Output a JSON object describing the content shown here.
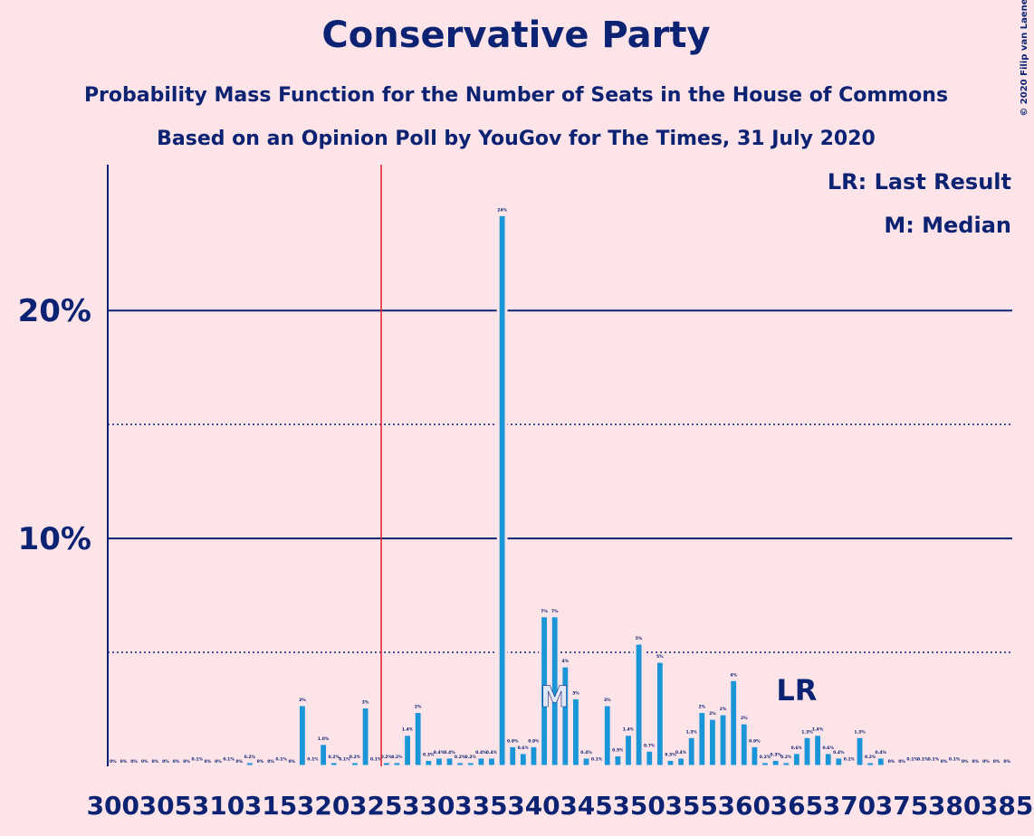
{
  "chart_data": {
    "type": "bar",
    "title": "Conservative Party",
    "subtitle": "Probability Mass Function for the Number of Seats in the House of Commons",
    "subtitle2": "Based on an Opinion Poll by YouGov for The Times, 31 July 2020",
    "copyright": "© 2020 Filip van Laenen",
    "legend": [
      "LR: Last Result",
      "M: Median"
    ],
    "x": [
      300,
      301,
      302,
      303,
      304,
      305,
      306,
      307,
      308,
      309,
      310,
      311,
      312,
      313,
      314,
      315,
      316,
      317,
      318,
      319,
      320,
      321,
      322,
      323,
      324,
      325,
      326,
      327,
      328,
      329,
      330,
      331,
      332,
      333,
      334,
      335,
      336,
      337,
      338,
      339,
      340,
      341,
      342,
      343,
      344,
      345,
      346,
      347,
      348,
      349,
      350,
      351,
      352,
      353,
      354,
      355,
      356,
      357,
      358,
      359,
      360,
      361,
      362,
      363,
      364,
      365,
      366,
      367,
      368,
      369,
      370,
      371,
      372,
      373,
      374,
      375,
      376,
      377,
      378,
      379,
      380,
      381,
      382,
      383,
      384,
      385
    ],
    "values": [
      0,
      0,
      0,
      0,
      0,
      0,
      0,
      0,
      0.1,
      0,
      0,
      0.1,
      0,
      0.2,
      0,
      0,
      0.1,
      0,
      2.7,
      0.1,
      1.0,
      0.2,
      0.1,
      0.2,
      2.6,
      0.1,
      0.2,
      0.2,
      1.4,
      2.4,
      0.3,
      0.4,
      0.4,
      0.2,
      0.2,
      0.4,
      0.4,
      24.2,
      0.9,
      0.6,
      0.9,
      6.6,
      6.6,
      4.4,
      3.0,
      0.4,
      0.1,
      2.7,
      0.5,
      1.4,
      5.4,
      0.7,
      4.6,
      0.3,
      0.4,
      1.3,
      2.4,
      2.1,
      2.3,
      3.8,
      1.9,
      0.9,
      0.2,
      0.3,
      0.2,
      0.6,
      1.3,
      1.4,
      0.6,
      0.4,
      0.1,
      1.3,
      0.2,
      0.4,
      0,
      0,
      0.1,
      0.1,
      0.1,
      0,
      0.1,
      0,
      0,
      0,
      0,
      0
    ],
    "value_labels": [
      "0%",
      "0%",
      "0%",
      "0%",
      "0%",
      "0%",
      "0%",
      "0%",
      "0.1%",
      "0%",
      "0%",
      "0.1%",
      "0%",
      "0.2%",
      "0%",
      "0%",
      "0.1%",
      "0%",
      "3%",
      "0.1%",
      "1.0%",
      "0.2%",
      "0.1%",
      "0.2%",
      "3%",
      "0.1%",
      "0.2%",
      "0.2%",
      "1.4%",
      "2%",
      "0.3%",
      "0.4%",
      "0.4%",
      "0.2%",
      "0.2%",
      "0.4%",
      "0.4%",
      "24%",
      "0.9%",
      "0.6%",
      "0.9%",
      "7%",
      "7%",
      "4%",
      "3%",
      "0.4%",
      "0.1%",
      "3%",
      "0.5%",
      "1.4%",
      "5%",
      "0.7%",
      "5%",
      "0.3%",
      "0.4%",
      "1.3%",
      "2%",
      "2%",
      "2%",
      "4%",
      "2%",
      "0.9%",
      "0.2%",
      "0.3%",
      "0.2%",
      "0.6%",
      "1.3%",
      "1.4%",
      "0.6%",
      "0.4%",
      "0.1%",
      "1.3%",
      "0.2%",
      "0.4%",
      "0%",
      "0%",
      "0.1%",
      "0.1%",
      "0.1%",
      "0%",
      "0.1%",
      "0%",
      "0%",
      "0%",
      "0%",
      "0%"
    ],
    "color": "#1a96d8",
    "xlim": [
      299.5,
      385.5
    ],
    "xticks": [
      300,
      305,
      310,
      315,
      320,
      325,
      330,
      335,
      340,
      345,
      350,
      355,
      360,
      365,
      370,
      375,
      380,
      385
    ],
    "ylim": [
      0,
      26.4
    ],
    "yticks": [
      {
        "value": 10,
        "label": "10%"
      },
      {
        "value": 20,
        "label": "20%"
      }
    ],
    "minor_yticks": [
      5,
      15
    ],
    "majority_line": 325.5,
    "median": {
      "seat": 342,
      "label": "M"
    },
    "last_result": {
      "seat": 365,
      "label": "LR"
    }
  }
}
